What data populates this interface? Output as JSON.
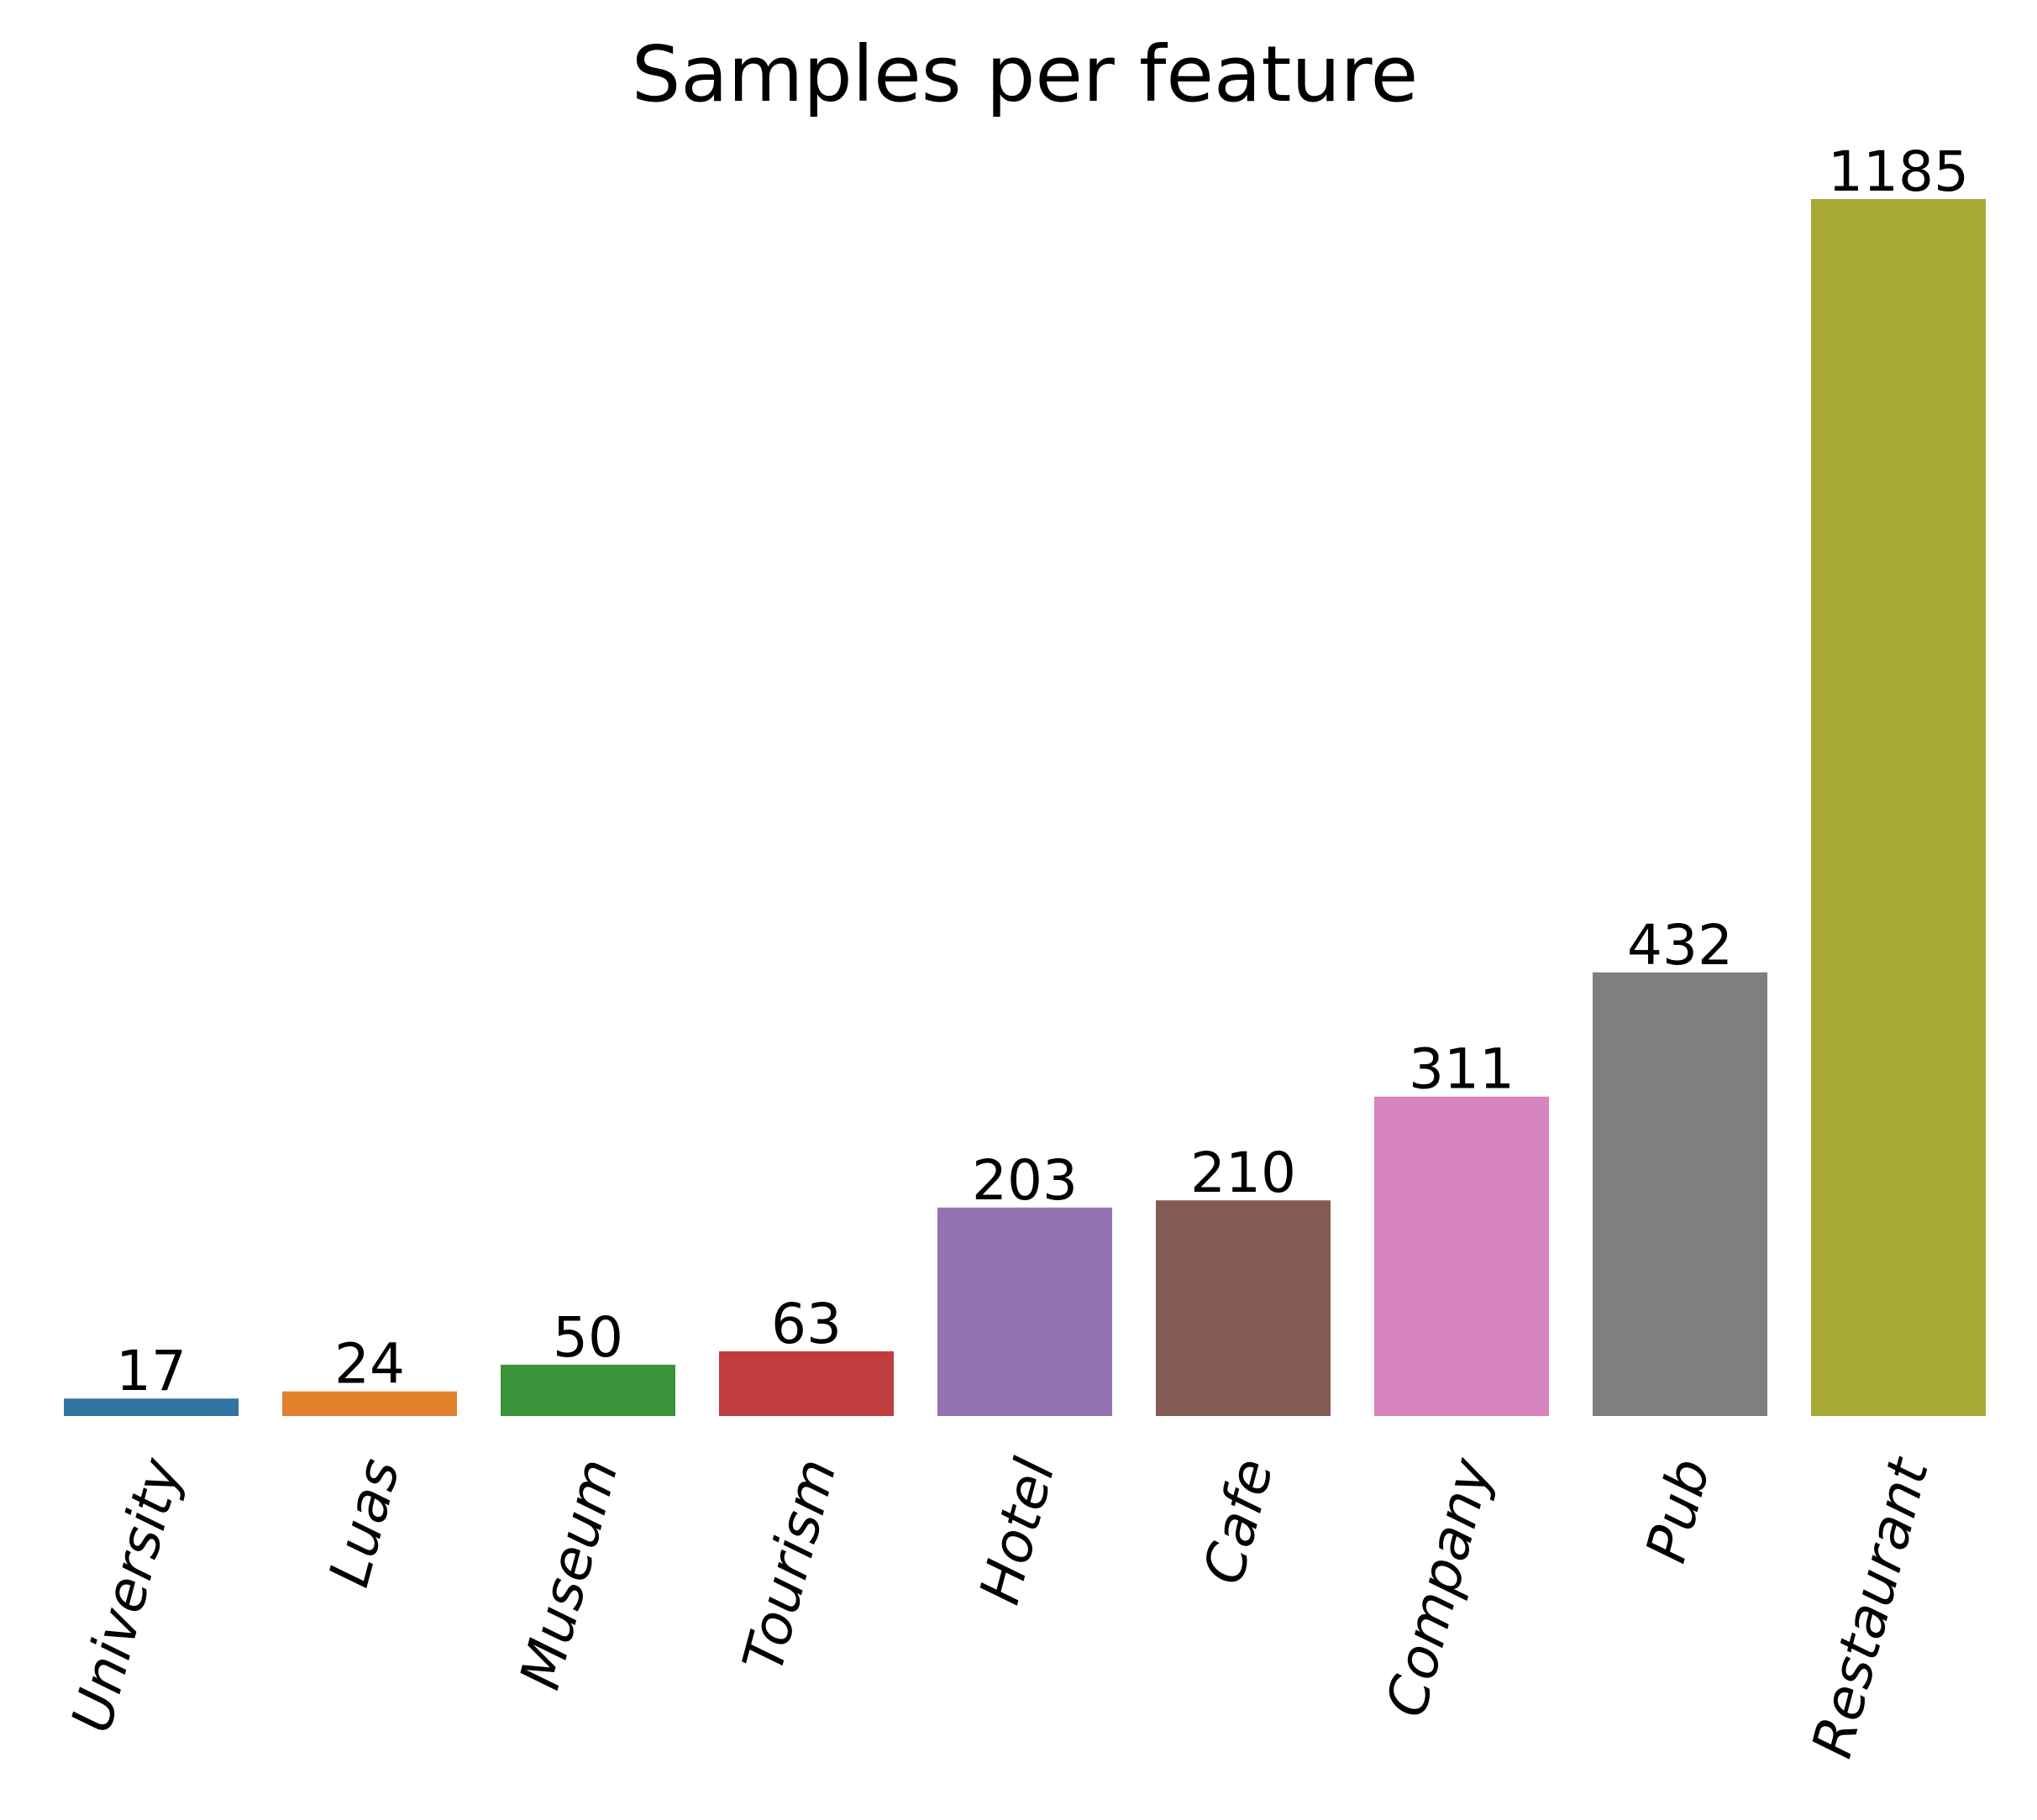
{
  "chart_data": {
    "type": "bar",
    "title": "Samples per feature",
    "xlabel": "",
    "ylabel": "",
    "categories": [
      "University",
      "Luas",
      "Museum",
      "Tourism",
      "Hotel",
      "Cafe",
      "Company",
      "Pub",
      "Restaurant"
    ],
    "values": [
      17,
      24,
      50,
      63,
      203,
      210,
      311,
      432,
      1185
    ],
    "value_labels": [
      "17",
      "24",
      "50",
      "63",
      "203",
      "210",
      "311",
      "432",
      "1185"
    ],
    "colors": [
      "#3274a1",
      "#e1812c",
      "#3a923a",
      "#c03d3e",
      "#9372b2",
      "#845b53",
      "#d684bd",
      "#7f7f7f",
      "#a9aa35"
    ],
    "ylim": [
      0,
      1185
    ],
    "grid": false,
    "legend": "none",
    "axes_visible": false,
    "tick_label_rotation": "rotated"
  }
}
